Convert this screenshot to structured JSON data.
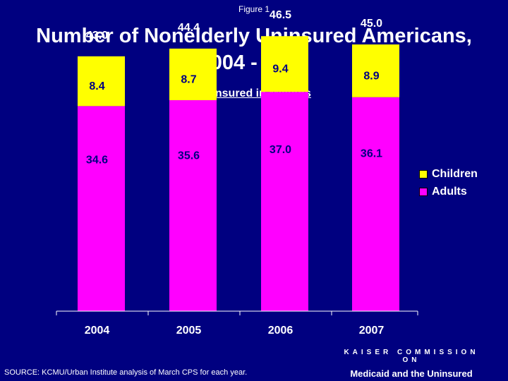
{
  "figure_label": "Figure 1",
  "title_line1": "Number of Nonelderly Uninsured Americans,",
  "title_line2": "2004 - 2007",
  "source": "SOURCE:  KCMU/Urban Institute analysis of March CPS for each year.",
  "branding": {
    "line1": "KAISER COMMISSION ON",
    "line2": "Medicaid and the Uninsured"
  },
  "chart_data": {
    "type": "bar",
    "stacked": true,
    "subtitle": "Uninsured in Millions",
    "categories": [
      "2004",
      "2005",
      "2006",
      "2007"
    ],
    "series": [
      {
        "name": "Adults",
        "values": [
          34.6,
          35.6,
          37.0,
          36.1
        ],
        "labels": [
          "34.6",
          "35.6",
          "37.0",
          "36.1"
        ],
        "color": "#FF00FF"
      },
      {
        "name": "Children",
        "values": [
          8.4,
          8.7,
          9.4,
          8.9
        ],
        "labels": [
          "8.4",
          "8.7",
          "9.4",
          "8.9"
        ],
        "color": "#FFFF00"
      }
    ],
    "totals": [
      "43.0",
      "44.4",
      "46.5",
      "45.0"
    ],
    "ylim": [
      0,
      50
    ],
    "legend": "right",
    "grid": false
  }
}
